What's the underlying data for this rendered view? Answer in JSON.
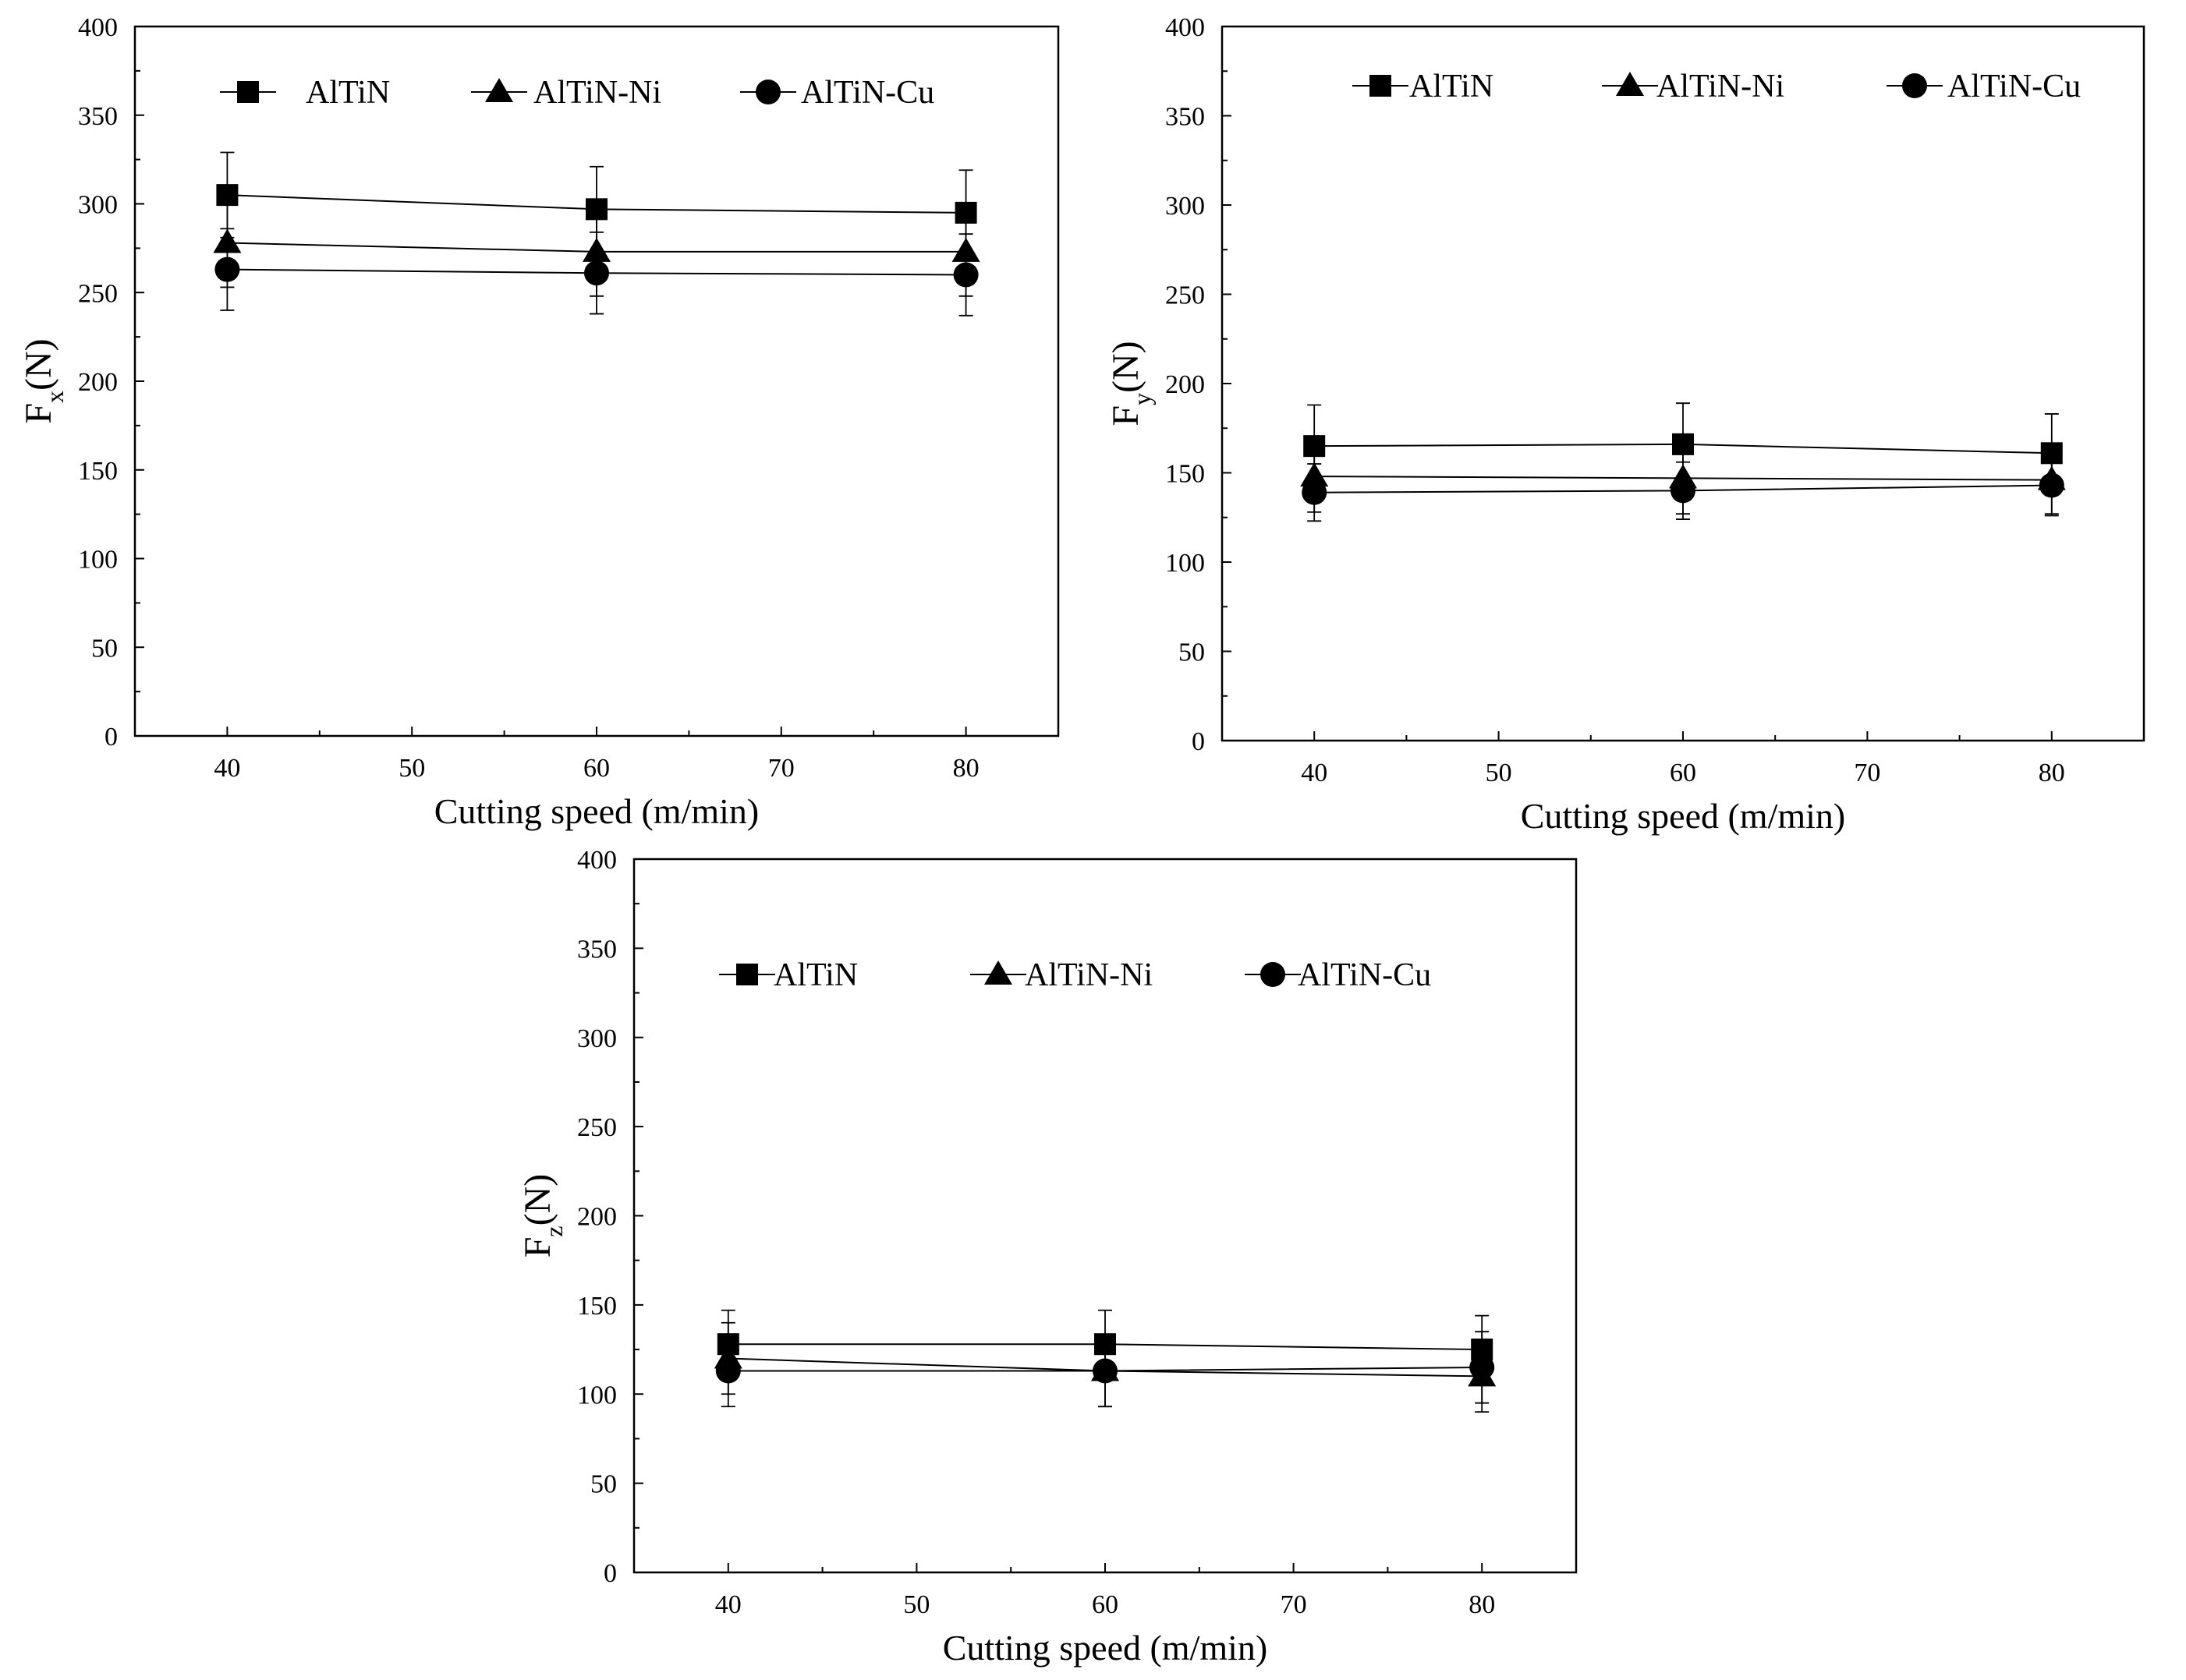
{
  "chart_data": [
    {
      "type": "line",
      "ylabel": "F",
      "ylabel_subscript": "x",
      "ylabel_unit": "(N)",
      "xlabel": "Cutting speed (m/min)",
      "xlim": [
        35,
        85
      ],
      "ylim": [
        0,
        400
      ],
      "xticks": [
        40,
        50,
        60,
        70,
        80
      ],
      "yticks": [
        0,
        50,
        100,
        150,
        200,
        250,
        300,
        350,
        400
      ],
      "legend_position": "top",
      "series": [
        {
          "name": "AlTiN",
          "marker": "square",
          "x": [
            40,
            60,
            80
          ],
          "values": [
            305,
            297,
            295
          ],
          "errors": [
            24,
            24,
            24
          ]
        },
        {
          "name": "AlTiN-Ni",
          "marker": "triangle",
          "x": [
            40,
            60,
            80
          ],
          "values": [
            278,
            273,
            273
          ],
          "errors": [
            25,
            25,
            25
          ]
        },
        {
          "name": "AlTiN-Cu",
          "marker": "circle",
          "x": [
            40,
            60,
            80
          ],
          "values": [
            263,
            261,
            260
          ],
          "errors": [
            23,
            23,
            23
          ]
        }
      ]
    },
    {
      "type": "line",
      "ylabel": "F",
      "ylabel_subscript": "y",
      "ylabel_unit": "(N)",
      "xlabel": "Cutting speed (m/min)",
      "xlim": [
        35,
        85
      ],
      "ylim": [
        0,
        400
      ],
      "xticks": [
        40,
        50,
        60,
        70,
        80
      ],
      "yticks": [
        0,
        50,
        100,
        150,
        200,
        250,
        300,
        350,
        400
      ],
      "legend_position": "top",
      "series": [
        {
          "name": "AlTiN",
          "marker": "square",
          "x": [
            40,
            60,
            80
          ],
          "values": [
            165,
            166,
            161
          ],
          "errors": [
            23,
            23,
            22
          ]
        },
        {
          "name": "AlTiN-Ni",
          "marker": "triangle",
          "x": [
            40,
            60,
            80
          ],
          "values": [
            148,
            147,
            146
          ],
          "errors": [
            20,
            20,
            20
          ]
        },
        {
          "name": "AlTiN-Cu",
          "marker": "circle",
          "x": [
            40,
            60,
            80
          ],
          "values": [
            139,
            140,
            143
          ],
          "errors": [
            16,
            16,
            16
          ]
        }
      ]
    },
    {
      "type": "line",
      "ylabel": "F",
      "ylabel_subscript": "z",
      "ylabel_unit": "(N)",
      "xlabel": "Cutting speed (m/min)",
      "xlim": [
        35,
        85
      ],
      "ylim": [
        0,
        400
      ],
      "xticks": [
        40,
        50,
        60,
        70,
        80
      ],
      "yticks": [
        0,
        50,
        100,
        150,
        200,
        250,
        300,
        350,
        400
      ],
      "legend_position": "top",
      "series": [
        {
          "name": "AlTiN",
          "marker": "square",
          "x": [
            40,
            60,
            80
          ],
          "values": [
            128,
            128,
            125
          ],
          "errors": [
            19,
            19,
            19
          ]
        },
        {
          "name": "AlTiN-Ni",
          "marker": "triangle",
          "x": [
            40,
            60,
            80
          ],
          "values": [
            120,
            113,
            110
          ],
          "errors": [
            20,
            20,
            20
          ]
        },
        {
          "name": "AlTiN-Cu",
          "marker": "circle",
          "x": [
            40,
            60,
            80
          ],
          "values": [
            113,
            113,
            115
          ],
          "errors": [
            20,
            20,
            20
          ]
        }
      ]
    }
  ]
}
